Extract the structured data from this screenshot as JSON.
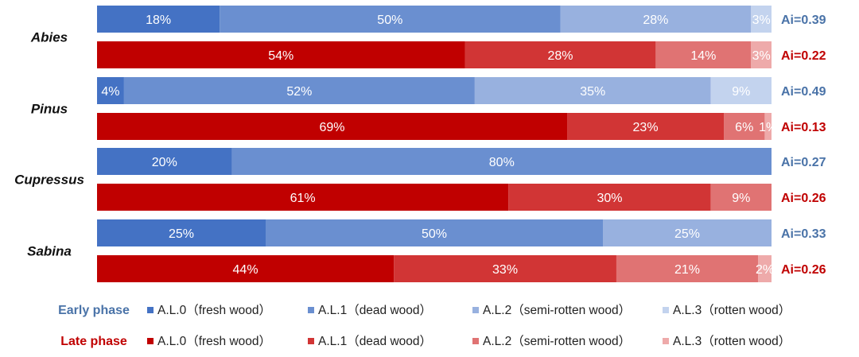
{
  "chart_data": {
    "type": "bar",
    "orientation": "horizontal",
    "stacked": true,
    "percent": true,
    "categories": [
      "Abies",
      "Pinus",
      "Cupressus",
      "Sabina"
    ],
    "phases": [
      "Early phase",
      "Late phase"
    ],
    "series": [
      {
        "phase": "Early phase",
        "names": [
          "A.L.0（fresh wood）",
          "A.L.1（dead wood）",
          "A.L.2（semi-rotten wood）",
          "A.L.3（rotten wood）"
        ],
        "colors": [
          "#4472c4",
          "#6a8fd0",
          "#98b1df",
          "#c3d3ee"
        ],
        "rows": [
          {
            "category": "Abies",
            "values": [
              18,
              50,
              28,
              3
            ],
            "labels": [
              "18%",
              "50%",
              "28%",
              "3%"
            ],
            "ai": "Ai=0.39"
          },
          {
            "category": "Pinus",
            "values": [
              4,
              52,
              35,
              9
            ],
            "labels": [
              "4%",
              "52%",
              "35%",
              "9%"
            ],
            "ai": "Ai=0.49"
          },
          {
            "category": "Cupressus",
            "values": [
              20,
              80,
              0,
              0
            ],
            "labels": [
              "20%",
              "80%",
              "",
              ""
            ],
            "ai": "Ai=0.27"
          },
          {
            "category": "Sabina",
            "values": [
              25,
              50,
              25,
              0
            ],
            "labels": [
              "25%",
              "50%",
              "25%",
              ""
            ],
            "ai": "Ai=0.33"
          }
        ]
      },
      {
        "phase": "Late phase",
        "names": [
          "A.L.0（fresh wood）",
          "A.L.1（dead wood）",
          "A.L.2（semi-rotten wood）",
          "A.L.3（rotten wood）"
        ],
        "colors": [
          "#c00000",
          "#d13535",
          "#e07373",
          "#eeaaaa"
        ],
        "rows": [
          {
            "category": "Abies",
            "values": [
              54,
              28,
              14,
              3
            ],
            "labels": [
              "54%",
              "28%",
              "14%",
              "3%"
            ],
            "ai": "Ai=0.22"
          },
          {
            "category": "Pinus",
            "values": [
              69,
              23,
              6,
              1
            ],
            "labels": [
              "69%",
              "23%",
              "6%",
              "1%"
            ],
            "ai": "Ai=0.13"
          },
          {
            "category": "Cupressus",
            "values": [
              61,
              30,
              9,
              0
            ],
            "labels": [
              "61%",
              "30%",
              "9%",
              ""
            ],
            "ai": "Ai=0.26"
          },
          {
            "category": "Sabina",
            "values": [
              44,
              33,
              21,
              2
            ],
            "labels": [
              "44%",
              "33%",
              "21%",
              "2%"
            ],
            "ai": "Ai=0.26"
          }
        ]
      }
    ],
    "ai_colors": {
      "Early phase": "#4a73a8",
      "Late phase": "#c00000"
    },
    "legend_placement": "bottom",
    "grid": false
  }
}
